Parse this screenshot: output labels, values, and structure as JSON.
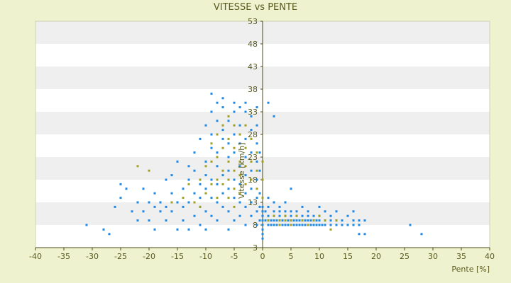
{
  "chart_data": {
    "type": "scatter",
    "title": "VITESSE vs PENTE",
    "xlabel": "Pente [%]",
    "ylabel": "Vitesse [km/h]",
    "xlim": [
      -40,
      40
    ],
    "ylim": [
      3,
      53
    ],
    "x_ticks": [
      -40,
      -35,
      -30,
      -25,
      -20,
      -15,
      -10,
      -5,
      0,
      5,
      10,
      15,
      20,
      25,
      30,
      35,
      40
    ],
    "y_ticks": [
      3,
      8,
      13,
      18,
      23,
      28,
      33,
      38,
      43,
      48,
      53
    ],
    "grid": "horizontal alternating bands",
    "colors": {
      "background": "#eef2cf",
      "plot_band_light": "#ffffff",
      "plot_band_dark": "#efefef",
      "series_main": "#1e88e5",
      "series_alt": "#a0a020",
      "axis": "#4a4a1a",
      "text": "#5a5a1e"
    },
    "series": [
      {
        "color": "#1e88e5",
        "points": [
          [
            -31,
            8
          ],
          [
            -28,
            7
          ],
          [
            -27,
            6
          ],
          [
            -26,
            12
          ],
          [
            -25,
            17
          ],
          [
            -25,
            14
          ],
          [
            -24,
            16
          ],
          [
            -23,
            11
          ],
          [
            -22,
            9
          ],
          [
            -22,
            13
          ],
          [
            -21,
            16
          ],
          [
            -21,
            11
          ],
          [
            -20,
            13
          ],
          [
            -20,
            9
          ],
          [
            -19,
            15
          ],
          [
            -19,
            12
          ],
          [
            -19,
            7
          ],
          [
            -18,
            11
          ],
          [
            -18,
            13
          ],
          [
            -17,
            9
          ],
          [
            -17,
            12
          ],
          [
            -17,
            18
          ],
          [
            -16,
            15
          ],
          [
            -16,
            11
          ],
          [
            -16,
            19
          ],
          [
            -15,
            13
          ],
          [
            -15,
            22
          ],
          [
            -15,
            7
          ],
          [
            -14,
            16
          ],
          [
            -14,
            9
          ],
          [
            -14,
            12
          ],
          [
            -13,
            18
          ],
          [
            -13,
            13
          ],
          [
            -13,
            21
          ],
          [
            -13,
            7
          ],
          [
            -12,
            15
          ],
          [
            -12,
            20
          ],
          [
            -12,
            10
          ],
          [
            -12,
            24
          ],
          [
            -11,
            17
          ],
          [
            -11,
            14
          ],
          [
            -11,
            27
          ],
          [
            -11,
            12
          ],
          [
            -11,
            8
          ],
          [
            -10,
            22
          ],
          [
            -10,
            19
          ],
          [
            -10,
            30
          ],
          [
            -10,
            16
          ],
          [
            -10,
            11
          ],
          [
            -10,
            7
          ],
          [
            -9,
            25
          ],
          [
            -9,
            28
          ],
          [
            -9,
            33
          ],
          [
            -9,
            37
          ],
          [
            -9,
            14
          ],
          [
            -9,
            18
          ],
          [
            -9,
            10
          ],
          [
            -8,
            21
          ],
          [
            -8,
            31
          ],
          [
            -8,
            35
          ],
          [
            -8,
            24
          ],
          [
            -8,
            13
          ],
          [
            -8,
            9
          ],
          [
            -8,
            17
          ],
          [
            -7,
            29
          ],
          [
            -7,
            34
          ],
          [
            -7,
            27
          ],
          [
            -7,
            19
          ],
          [
            -7,
            15
          ],
          [
            -7,
            12
          ],
          [
            -7,
            36
          ],
          [
            -6,
            23
          ],
          [
            -6,
            31
          ],
          [
            -6,
            26
          ],
          [
            -6,
            20
          ],
          [
            -6,
            16
          ],
          [
            -6,
            11
          ],
          [
            -6,
            7
          ],
          [
            -5,
            28
          ],
          [
            -5,
            33
          ],
          [
            -5,
            24
          ],
          [
            -5,
            18
          ],
          [
            -5,
            14
          ],
          [
            -5,
            9
          ],
          [
            -5,
            35
          ],
          [
            -4,
            30
          ],
          [
            -4,
            26
          ],
          [
            -4,
            21
          ],
          [
            -4,
            17
          ],
          [
            -4,
            13
          ],
          [
            -4,
            10
          ],
          [
            -4,
            34
          ],
          [
            -3,
            27
          ],
          [
            -3,
            33
          ],
          [
            -3,
            23
          ],
          [
            -3,
            19
          ],
          [
            -3,
            15
          ],
          [
            -3,
            12
          ],
          [
            -3,
            8
          ],
          [
            -3,
            35
          ],
          [
            -2,
            29
          ],
          [
            -2,
            24
          ],
          [
            -2,
            20
          ],
          [
            -2,
            16
          ],
          [
            -2,
            13
          ],
          [
            -2,
            10
          ],
          [
            -2,
            32
          ],
          [
            -1,
            26
          ],
          [
            -1,
            22
          ],
          [
            -1,
            18
          ],
          [
            -1,
            14
          ],
          [
            -1,
            11
          ],
          [
            -1,
            8
          ],
          [
            -1,
            30
          ],
          [
            -1,
            34
          ],
          [
            -0.5,
            20
          ],
          [
            -0.5,
            15
          ],
          [
            -0.5,
            12
          ],
          [
            -0.5,
            9
          ],
          [
            -0.5,
            24
          ],
          [
            0,
            10
          ],
          [
            0,
            8
          ],
          [
            0,
            7
          ],
          [
            0,
            6
          ],
          [
            0,
            5
          ],
          [
            0,
            9
          ],
          [
            0,
            11
          ],
          [
            0,
            12
          ],
          [
            0.5,
            9
          ],
          [
            0.5,
            11
          ],
          [
            1,
            8
          ],
          [
            1,
            9
          ],
          [
            1,
            10
          ],
          [
            1,
            12
          ],
          [
            1,
            14
          ],
          [
            1,
            35
          ],
          [
            1.5,
            8
          ],
          [
            1.5,
            9
          ],
          [
            2,
            8
          ],
          [
            2,
            9
          ],
          [
            2,
            10
          ],
          [
            2,
            11
          ],
          [
            2,
            13
          ],
          [
            2,
            32
          ],
          [
            2.5,
            8
          ],
          [
            2.5,
            9
          ],
          [
            3,
            8
          ],
          [
            3,
            9
          ],
          [
            3,
            10
          ],
          [
            3,
            11
          ],
          [
            3,
            12
          ],
          [
            3.5,
            8
          ],
          [
            3.5,
            9
          ],
          [
            4,
            8
          ],
          [
            4,
            9
          ],
          [
            4,
            10
          ],
          [
            4,
            11
          ],
          [
            4,
            13
          ],
          [
            4.5,
            8
          ],
          [
            4.5,
            9
          ],
          [
            5,
            8
          ],
          [
            5,
            9
          ],
          [
            5,
            10
          ],
          [
            5,
            11
          ],
          [
            5,
            16
          ],
          [
            5.5,
            8
          ],
          [
            5.5,
            9
          ],
          [
            6,
            8
          ],
          [
            6,
            9
          ],
          [
            6,
            10
          ],
          [
            6,
            11
          ],
          [
            6.5,
            8
          ],
          [
            6.5,
            9
          ],
          [
            7,
            8
          ],
          [
            7,
            9
          ],
          [
            7,
            10
          ],
          [
            7,
            12
          ],
          [
            7.5,
            8
          ],
          [
            7.5,
            9
          ],
          [
            8,
            8
          ],
          [
            8,
            9
          ],
          [
            8,
            10
          ],
          [
            8,
            11
          ],
          [
            8.5,
            8
          ],
          [
            8.5,
            9
          ],
          [
            9,
            8
          ],
          [
            9,
            9
          ],
          [
            9,
            10
          ],
          [
            9.5,
            8
          ],
          [
            9.5,
            9
          ],
          [
            10,
            8
          ],
          [
            10,
            9
          ],
          [
            10,
            10
          ],
          [
            10,
            12
          ],
          [
            10.5,
            8
          ],
          [
            11,
            8
          ],
          [
            11,
            9
          ],
          [
            11,
            11
          ],
          [
            12,
            8
          ],
          [
            12,
            9
          ],
          [
            12,
            10
          ],
          [
            13,
            8
          ],
          [
            13,
            9
          ],
          [
            13,
            11
          ],
          [
            14,
            8
          ],
          [
            14,
            9
          ],
          [
            15,
            8
          ],
          [
            15,
            10
          ],
          [
            16,
            8
          ],
          [
            16,
            9
          ],
          [
            16,
            11
          ],
          [
            17,
            8
          ],
          [
            17,
            9
          ],
          [
            17,
            6
          ],
          [
            18,
            9
          ],
          [
            18,
            6
          ],
          [
            26,
            8
          ],
          [
            28,
            6
          ]
        ]
      },
      {
        "color": "#a0a020",
        "points": [
          [
            -22,
            21
          ],
          [
            -20,
            20
          ],
          [
            -16,
            13
          ],
          [
            -14,
            14
          ],
          [
            -13,
            17
          ],
          [
            -12,
            13
          ],
          [
            -11,
            12
          ],
          [
            -11,
            18
          ],
          [
            -10,
            15
          ],
          [
            -10,
            21
          ],
          [
            -9,
            22
          ],
          [
            -9,
            17
          ],
          [
            -9,
            26
          ],
          [
            -8,
            18
          ],
          [
            -8,
            23
          ],
          [
            -8,
            28
          ],
          [
            -8,
            14
          ],
          [
            -7,
            20
          ],
          [
            -7,
            25
          ],
          [
            -7,
            17
          ],
          [
            -7,
            30
          ],
          [
            -6,
            22
          ],
          [
            -6,
            18
          ],
          [
            -6,
            27
          ],
          [
            -6,
            14
          ],
          [
            -6,
            32
          ],
          [
            -5,
            20
          ],
          [
            -5,
            25
          ],
          [
            -5,
            16
          ],
          [
            -5,
            30
          ],
          [
            -5,
            12
          ],
          [
            -4,
            22
          ],
          [
            -4,
            19
          ],
          [
            -4,
            28
          ],
          [
            -4,
            15
          ],
          [
            -3,
            21
          ],
          [
            -3,
            25
          ],
          [
            -3,
            17
          ],
          [
            -3,
            30
          ],
          [
            -2,
            22
          ],
          [
            -2,
            18
          ],
          [
            -2,
            27
          ],
          [
            -1,
            20
          ],
          [
            -1,
            16
          ],
          [
            -1,
            24
          ],
          [
            0,
            22
          ],
          [
            0,
            18
          ],
          [
            0,
            14
          ],
          [
            1,
            9
          ],
          [
            2,
            10
          ],
          [
            3,
            9
          ],
          [
            3,
            8
          ],
          [
            4,
            10
          ],
          [
            4,
            9
          ],
          [
            5,
            8
          ],
          [
            5,
            9
          ],
          [
            6,
            10
          ],
          [
            7,
            9
          ],
          [
            8,
            8
          ],
          [
            9,
            9
          ],
          [
            10,
            10
          ],
          [
            11,
            9
          ],
          [
            12,
            7
          ],
          [
            13,
            9
          ]
        ]
      }
    ]
  }
}
